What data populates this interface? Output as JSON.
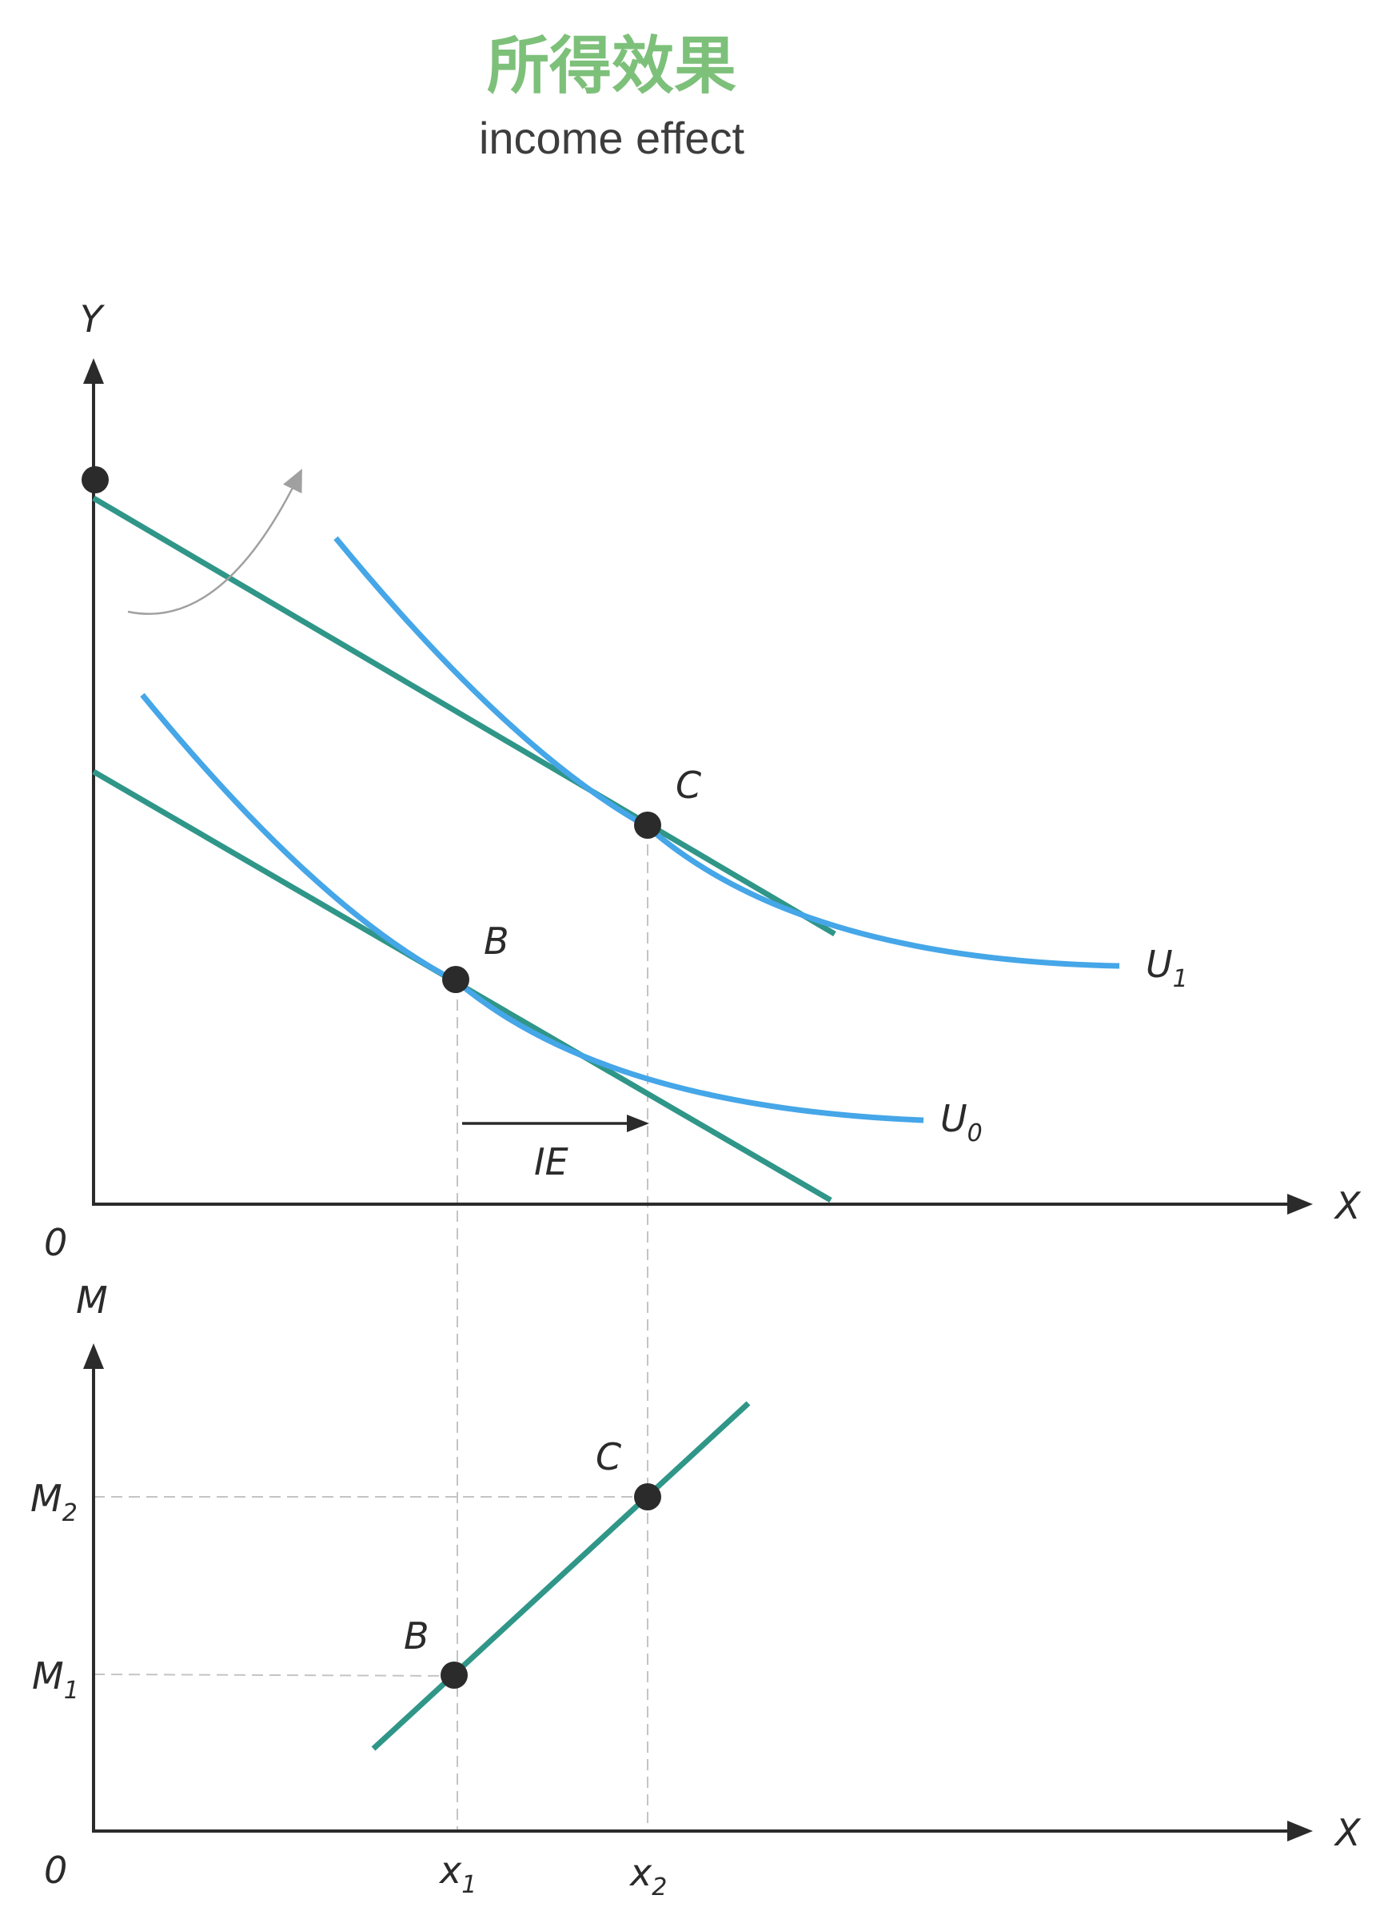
{
  "title": "所得效果",
  "subtitle": "income effect",
  "colors": {
    "title": "#7dc07a",
    "indifference_curve": "#45a6e8",
    "budget_line": "#2f9688",
    "axis": "#2b2b2b",
    "guide": "#c4c4c4",
    "rotation_arrow": "#a0a0a0"
  },
  "top_panel": {
    "y_axis_label": "Y",
    "x_axis_label": "X",
    "origin_label": "0",
    "curve_u1": {
      "base": "U",
      "sub": "1"
    },
    "curve_u0": {
      "base": "U",
      "sub": "0"
    },
    "point_c": "C",
    "point_b": "B",
    "arrow_label": "IE"
  },
  "bottom_panel": {
    "y_axis_label": "M",
    "x_axis_label": "X",
    "origin_label": "0",
    "point_c": "C",
    "point_b": "B",
    "m2": {
      "base": "M",
      "sub": "2"
    },
    "m1": {
      "base": "M",
      "sub": "1"
    },
    "x1": {
      "base": "x",
      "sub": "1"
    },
    "x2": {
      "base": "x",
      "sub": "2"
    }
  }
}
